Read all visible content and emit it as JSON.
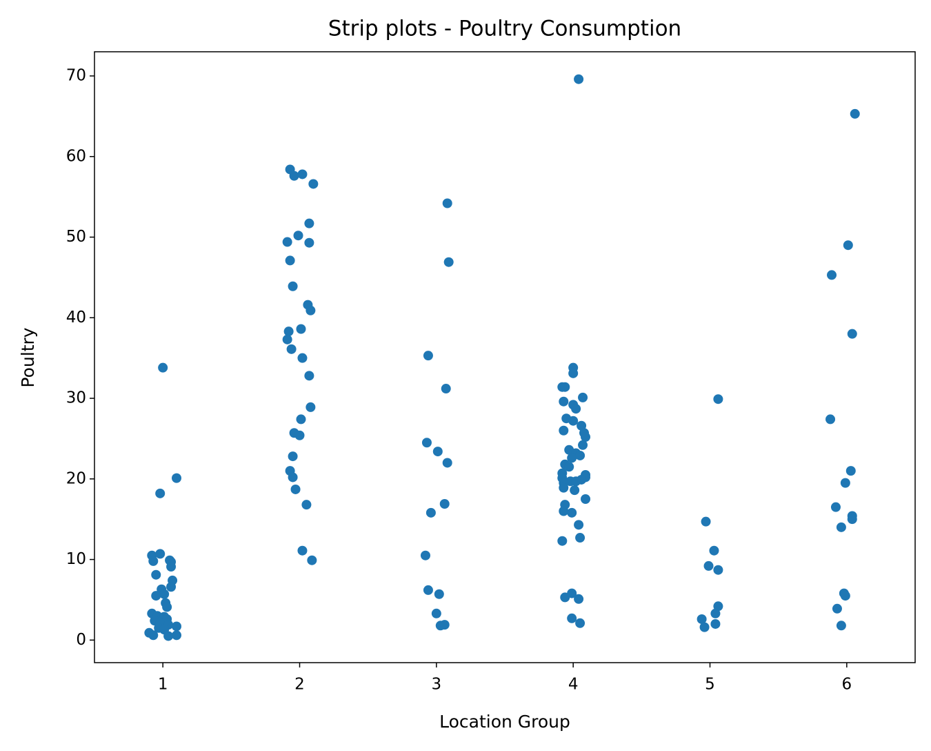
{
  "chart_data": {
    "type": "scatter",
    "title": "Strip plots - Poultry Consumption",
    "x_label": "Location Group",
    "y_label": "Poultry",
    "color": "#1f77b4",
    "xlim": [
      0.5,
      6.5
    ],
    "xticks": [
      1,
      2,
      3,
      4,
      5,
      6
    ],
    "ylim": [
      -2.8,
      73
    ],
    "yticks": [
      0,
      10,
      20,
      30,
      40,
      50,
      60,
      70
    ],
    "x": [
      1.0,
      1.1,
      0.98,
      0.92,
      0.98,
      1.05,
      1.06,
      0.93,
      1.06,
      0.95,
      1.07,
      1.06,
      0.99,
      1.01,
      0.95,
      1.02,
      1.03,
      0.92,
      0.96,
      1.01,
      1.03,
      0.94,
      0.98,
      1.04,
      1.1,
      0.97,
      1.01,
      0.9,
      0.93,
      1.04,
      1.1,
      1.93,
      1.96,
      2.02,
      2.1,
      2.07,
      1.99,
      1.91,
      2.07,
      1.93,
      1.95,
      2.06,
      2.08,
      2.01,
      1.92,
      1.91,
      1.94,
      2.02,
      2.07,
      2.08,
      2.01,
      1.96,
      2.0,
      1.95,
      1.93,
      1.95,
      1.97,
      2.05,
      2.02,
      2.09,
      3.08,
      3.09,
      2.94,
      3.07,
      2.93,
      3.01,
      3.08,
      2.96,
      3.06,
      2.92,
      2.94,
      3.02,
      3.0,
      3.03,
      3.06,
      4.04,
      4.0,
      4.0,
      3.92,
      3.94,
      4.07,
      3.93,
      4.0,
      4.02,
      3.95,
      4.0,
      4.06,
      3.93,
      4.08,
      4.09,
      4.07,
      3.97,
      4.02,
      4.05,
      3.99,
      3.94,
      3.97,
      3.92,
      4.09,
      3.92,
      4.09,
      4.06,
      3.98,
      4.02,
      3.93,
      3.93,
      4.01,
      4.09,
      3.94,
      3.93,
      3.99,
      4.04,
      4.05,
      3.92,
      3.99,
      3.94,
      4.04,
      3.99,
      4.05,
      5.06,
      4.97,
      5.03,
      4.99,
      5.06,
      5.06,
      5.04,
      4.94,
      4.96,
      5.04,
      6.06,
      6.01,
      5.89,
      6.04,
      5.88,
      6.03,
      5.99,
      5.92,
      6.04,
      6.04,
      5.96,
      5.98,
      5.99,
      5.93,
      5.96
    ],
    "values": [
      33.8,
      20.1,
      18.2,
      10.5,
      10.7,
      9.9,
      9.7,
      9.8,
      9.1,
      8.1,
      7.4,
      6.6,
      6.3,
      5.7,
      5.5,
      4.6,
      4.1,
      3.3,
      3.0,
      2.9,
      2.6,
      2.4,
      2.1,
      1.9,
      1.7,
      1.5,
      1.3,
      0.9,
      0.6,
      0.5,
      0.6,
      58.4,
      57.6,
      57.8,
      56.6,
      51.7,
      50.2,
      49.4,
      49.3,
      47.1,
      43.9,
      41.6,
      40.9,
      38.6,
      38.3,
      37.3,
      36.1,
      35.0,
      32.8,
      28.9,
      27.4,
      25.7,
      25.4,
      22.8,
      21.0,
      20.2,
      18.7,
      16.8,
      11.1,
      9.9,
      54.2,
      46.9,
      35.3,
      31.2,
      24.5,
      23.4,
      22.0,
      15.8,
      16.9,
      10.5,
      6.2,
      5.7,
      3.3,
      1.8,
      1.9,
      69.6,
      33.8,
      33.1,
      31.4,
      31.4,
      30.1,
      29.6,
      29.2,
      28.7,
      27.5,
      27.2,
      26.6,
      26.0,
      25.7,
      25.2,
      24.2,
      23.6,
      23.2,
      22.9,
      22.6,
      21.8,
      21.5,
      20.7,
      20.5,
      20.1,
      20.2,
      19.9,
      19.7,
      19.7,
      19.5,
      18.9,
      18.6,
      17.5,
      16.8,
      16.0,
      15.8,
      14.3,
      12.7,
      12.3,
      5.8,
      5.3,
      5.1,
      2.7,
      2.1,
      29.9,
      14.7,
      11.1,
      9.2,
      8.7,
      4.2,
      3.3,
      2.6,
      1.6,
      2.0,
      65.3,
      49.0,
      45.3,
      38.0,
      27.4,
      21.0,
      19.5,
      16.5,
      15.4,
      15.0,
      14.0,
      5.8,
      5.5,
      3.9,
      1.8
    ]
  }
}
